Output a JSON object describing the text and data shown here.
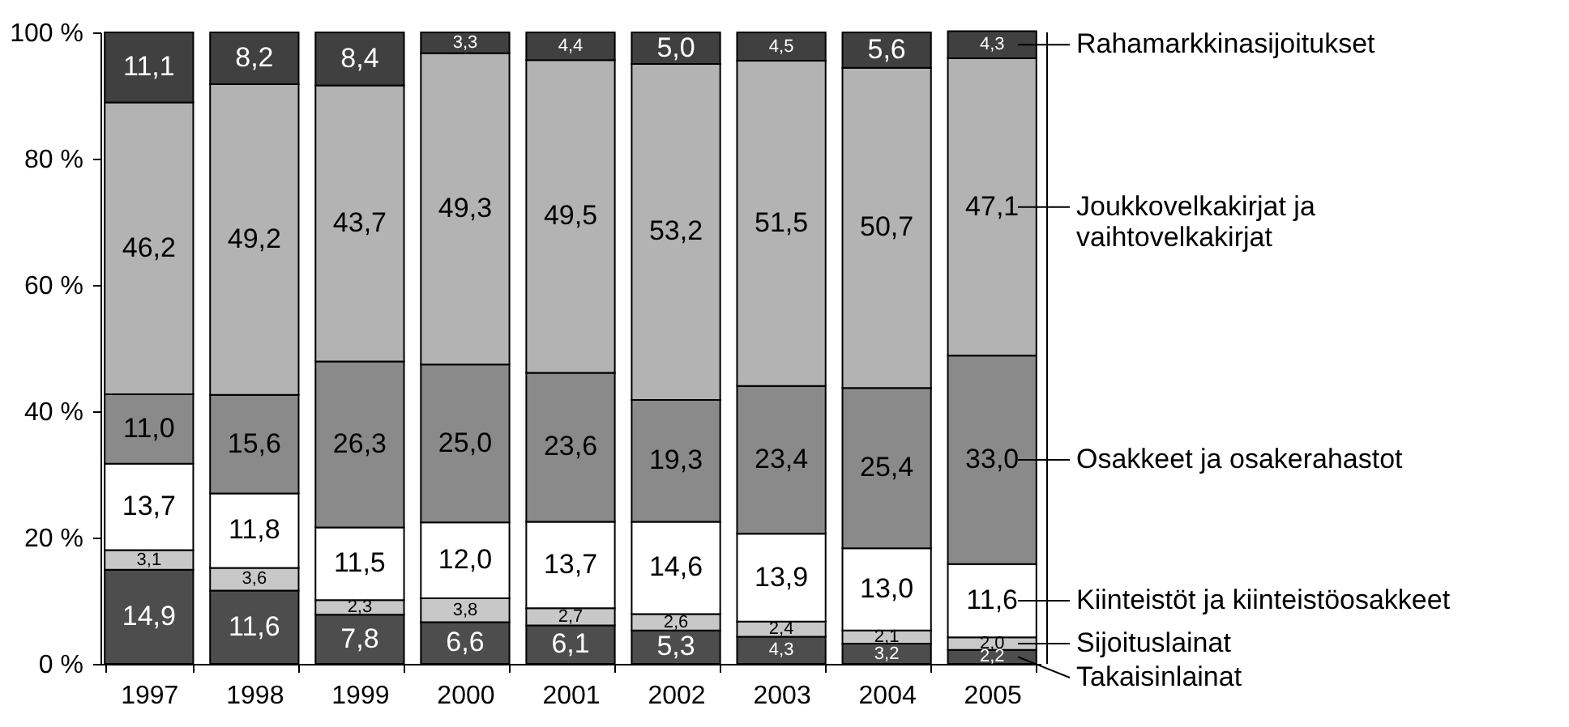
{
  "chart_data": {
    "type": "bar",
    "stacked": true,
    "legend": "right",
    "categories": [
      "1997",
      "1998",
      "1999",
      "2000",
      "2001",
      "2002",
      "2003",
      "2004",
      "2005"
    ],
    "ylim": [
      0,
      100
    ],
    "yticks": [
      {
        "value": 0,
        "label": "0 %"
      },
      {
        "value": 20,
        "label": "20 %"
      },
      {
        "value": 40,
        "label": "40 %"
      },
      {
        "value": 60,
        "label": "60 %"
      },
      {
        "value": 80,
        "label": "80 %"
      },
      {
        "value": 100,
        "label": "100 %"
      }
    ],
    "series": [
      {
        "name": "Takaisinlainat",
        "color": "#4d4d4d",
        "values": [
          14.9,
          11.6,
          7.8,
          6.6,
          6.1,
          5.3,
          4.3,
          3.2,
          2.2
        ],
        "value_labels": [
          "14,9",
          "11,6",
          "7,8",
          "6,6",
          "6,1",
          "5,3",
          "4,3",
          "3,2",
          "2,2"
        ]
      },
      {
        "name": "Sijoituslainat",
        "color": "#c8c8c8",
        "values": [
          3.1,
          3.6,
          2.3,
          3.8,
          2.7,
          2.6,
          2.4,
          2.1,
          2.0
        ],
        "value_labels": [
          "3,1",
          "3,6",
          "2,3",
          "3,8",
          "2,7",
          "2,6",
          "2,4",
          "2,1",
          "2,0"
        ]
      },
      {
        "name": "Kiinteistöt ja kiinteistöosakkeet",
        "color": "#ffffff",
        "values": [
          13.7,
          11.8,
          11.5,
          12.0,
          13.7,
          14.6,
          13.9,
          13.0,
          11.6
        ],
        "value_labels": [
          "13,7",
          "11,8",
          "11,5",
          "12,0",
          "13,7",
          "14,6",
          "13,9",
          "13,0",
          "11,6"
        ]
      },
      {
        "name": "Osakkeet ja osakerahastot",
        "color": "#8a8a8a",
        "values": [
          11.0,
          15.6,
          26.3,
          25.0,
          23.6,
          19.3,
          23.4,
          25.4,
          33.0
        ],
        "value_labels": [
          "11,0",
          "15,6",
          "26,3",
          "25,0",
          "23,6",
          "19,3",
          "23,4",
          "25,4",
          "33,0"
        ]
      },
      {
        "name": "Joukkovelkakirjat ja\nvaihtovelkakirjat",
        "color": "#b3b3b3",
        "values": [
          46.2,
          49.2,
          43.7,
          49.3,
          49.5,
          53.2,
          51.5,
          50.7,
          47.1
        ],
        "value_labels": [
          "46,2",
          "49,2",
          "43,7",
          "49,3",
          "49,5",
          "53,2",
          "51,5",
          "50,7",
          "47,1"
        ]
      },
      {
        "name": "Rahamarkkinasijoitukset",
        "color": "#404040",
        "values": [
          11.1,
          8.2,
          8.4,
          3.3,
          4.4,
          5.0,
          4.5,
          5.6,
          4.3
        ],
        "value_labels": [
          "11,1",
          "8,2",
          "8,4",
          "3,3",
          "4,4",
          "5,0",
          "4,5",
          "5,6",
          "4,3"
        ]
      }
    ]
  }
}
